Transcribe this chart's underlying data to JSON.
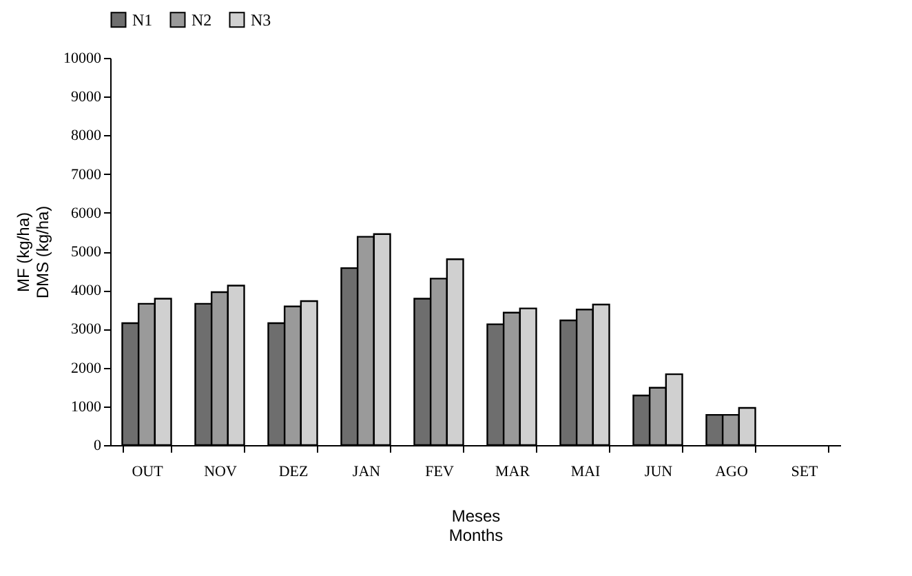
{
  "chart_data": {
    "type": "bar",
    "xlabel": "Meses\nMonths",
    "ylabel": "MF (kg/ha)\nDMS (kg/ha)",
    "categories": [
      "OUT",
      "NOV",
      "DEZ",
      "JAN",
      "FEV",
      "MAR",
      "MAI",
      "JUN",
      "AGO",
      "SET"
    ],
    "series": [
      {
        "name": "N1",
        "color": "#6e6e6e",
        "values": [
          3150,
          3650,
          3150,
          4570,
          3780,
          3120,
          3220,
          1280,
          780,
          null
        ]
      },
      {
        "name": "N2",
        "color": "#9a9a9a",
        "values": [
          3650,
          3950,
          3580,
          5380,
          4300,
          3420,
          3500,
          1480,
          780,
          null
        ]
      },
      {
        "name": "N3",
        "color": "#d0d0d0",
        "values": [
          3780,
          4120,
          3720,
          5450,
          4800,
          3530,
          3630,
          1830,
          960,
          null
        ]
      }
    ],
    "ylim": [
      0,
      10000
    ],
    "yticks": [
      0,
      1000,
      2000,
      3000,
      4000,
      5000,
      6000,
      7000,
      8000,
      9000,
      10000
    ],
    "grid": false,
    "legend": "top"
  }
}
